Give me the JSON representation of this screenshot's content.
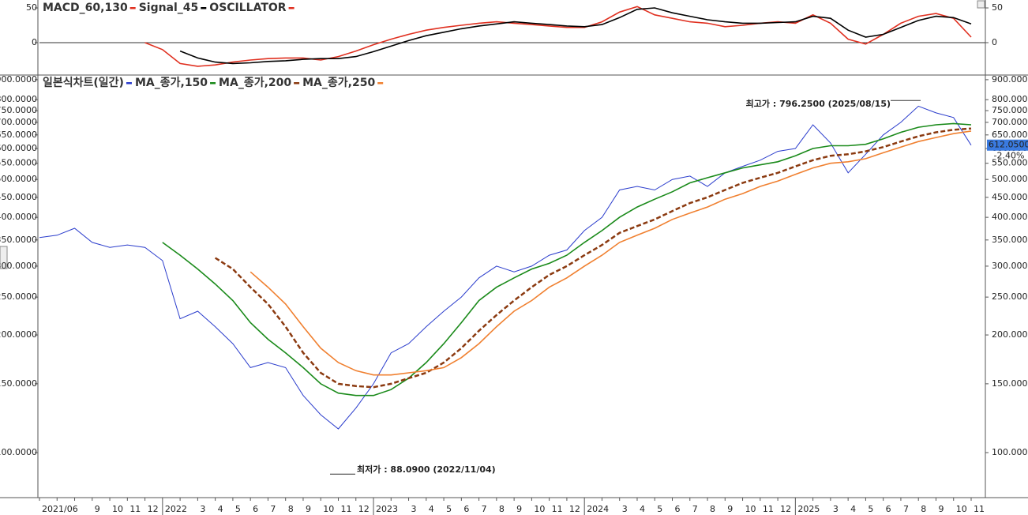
{
  "chart_data": [
    {
      "type": "line",
      "series": [
        {
          "name": "MACD_60,130",
          "color": "#e03020",
          "values": [
            null,
            null,
            null,
            null,
            null,
            null,
            0,
            -10,
            -30,
            -34,
            -32,
            -28,
            -25,
            -23,
            -22,
            -22,
            -25,
            -20,
            -12,
            -3,
            5,
            12,
            18,
            22,
            25,
            28,
            30,
            28,
            26,
            24,
            22,
            22,
            30,
            44,
            52,
            40,
            35,
            30,
            28,
            23,
            25,
            28,
            30,
            28,
            40,
            28,
            5,
            -2,
            12,
            28,
            38,
            42,
            35,
            8
          ]
        },
        {
          "name": "Signal_45",
          "color": "#000000",
          "values": [
            null,
            null,
            null,
            null,
            null,
            null,
            null,
            null,
            -12,
            -22,
            -28,
            -30,
            -29,
            -27,
            -26,
            -24,
            -23,
            -23,
            -20,
            -13,
            -5,
            3,
            10,
            15,
            20,
            24,
            27,
            30,
            28,
            26,
            24,
            23,
            26,
            36,
            48,
            50,
            43,
            38,
            33,
            30,
            28,
            28,
            29,
            30,
            38,
            35,
            18,
            8,
            12,
            22,
            32,
            38,
            36,
            27
          ]
        },
        {
          "name": "OSCILLATOR",
          "color": "#e03020"
        }
      ],
      "ylim": [
        -46.6,
        61.4
      ],
      "yticks": [
        0,
        50
      ]
    },
    {
      "type": "line",
      "log_scale": true,
      "categories": [
        "2021/06",
        null,
        null,
        "9",
        "10",
        "11",
        "12",
        "2022",
        null,
        "3",
        "4",
        "5",
        "6",
        "7",
        "8",
        "9",
        "10",
        "11",
        "12",
        "2023",
        null,
        "3",
        "4",
        "5",
        "6",
        "7",
        "8",
        "9",
        "10",
        "11",
        "12",
        "2024",
        null,
        "3",
        "4",
        "5",
        "6",
        "7",
        "8",
        "9",
        "10",
        "11",
        "12",
        "2025",
        null,
        "3",
        "4",
        "5",
        "6",
        "7",
        "8",
        "9",
        "10",
        "11"
      ],
      "series": [
        {
          "name": "일본식차트(일간)",
          "color": "#2a3ccc",
          "values": [
            355,
            360,
            375,
            345,
            335,
            340,
            335,
            310,
            220,
            230,
            210,
            190,
            165,
            170,
            165,
            140,
            125,
            115,
            130,
            150,
            180,
            190,
            210,
            230,
            250,
            280,
            300,
            290,
            300,
            320,
            330,
            370,
            400,
            470,
            480,
            470,
            500,
            510,
            480,
            520,
            540,
            560,
            590,
            600,
            690,
            620,
            520,
            580,
            650,
            700,
            770,
            740,
            720,
            612
          ]
        },
        {
          "name": "MA_종가,150",
          "color": "#1a8a1a",
          "values": [
            null,
            null,
            null,
            null,
            null,
            null,
            null,
            345,
            320,
            295,
            270,
            245,
            215,
            195,
            180,
            165,
            150,
            142,
            140,
            140,
            145,
            155,
            170,
            190,
            215,
            245,
            265,
            280,
            295,
            305,
            320,
            345,
            370,
            400,
            425,
            445,
            465,
            490,
            505,
            520,
            535,
            545,
            555,
            575,
            600,
            610,
            610,
            615,
            635,
            660,
            680,
            690,
            695,
            690
          ]
        },
        {
          "name": "MA_종가,200",
          "color": "#8b3a10",
          "dash": true,
          "values": [
            null,
            null,
            null,
            null,
            null,
            null,
            null,
            null,
            null,
            null,
            315,
            295,
            265,
            240,
            210,
            180,
            160,
            150,
            148,
            147,
            150,
            155,
            160,
            170,
            185,
            205,
            225,
            245,
            265,
            285,
            300,
            320,
            340,
            365,
            380,
            395,
            415,
            435,
            450,
            470,
            490,
            505,
            520,
            540,
            560,
            575,
            580,
            590,
            605,
            625,
            645,
            660,
            670,
            675
          ]
        },
        {
          "name": "MA_종가,250",
          "color": "#f08030",
          "values": [
            null,
            null,
            null,
            null,
            null,
            null,
            null,
            null,
            null,
            null,
            null,
            null,
            290,
            265,
            240,
            210,
            185,
            170,
            162,
            158,
            158,
            160,
            162,
            165,
            175,
            190,
            210,
            230,
            245,
            265,
            280,
            300,
            320,
            345,
            360,
            375,
            395,
            410,
            425,
            445,
            460,
            480,
            495,
            515,
            535,
            550,
            555,
            565,
            585,
            605,
            625,
            640,
            655,
            665
          ]
        }
      ],
      "ylim": [
        76.7,
        925
      ],
      "yticks": [
        {
          "value": 100,
          "label": "100.0000"
        },
        {
          "value": 150,
          "label": "150.0000"
        },
        {
          "value": 200,
          "label": "200.0000"
        },
        {
          "value": 250,
          "label": "250.0000"
        },
        {
          "value": 300,
          "label": "300.0000"
        },
        {
          "value": 350,
          "label": "350.0000"
        },
        {
          "value": 400,
          "label": "400.0000"
        },
        {
          "value": 450,
          "label": "450.0000"
        },
        {
          "value": 500,
          "label": "500.0000"
        },
        {
          "value": 550,
          "label": "550.0000"
        },
        {
          "value": 600,
          "label": "600.0000"
        },
        {
          "value": 650,
          "label": "650.0000"
        },
        {
          "value": 700,
          "label": "700.0000"
        },
        {
          "value": 750,
          "label": "750.0000"
        },
        {
          "value": 800,
          "label": "800.0000"
        },
        {
          "value": 900,
          "label": "900.0000"
        }
      ],
      "annotations": [
        {
          "text": "최고가 : 796.2500 (2025/08/15)",
          "value": 796.25,
          "color": "#e02020"
        },
        {
          "text": "최저가 : 88.0900 (2022/11/04)",
          "value": 88.09,
          "color": "#1a2acc"
        }
      ],
      "last_price": {
        "value": 612.05,
        "label": "612.0500",
        "change": "-2.40%"
      }
    }
  ]
}
